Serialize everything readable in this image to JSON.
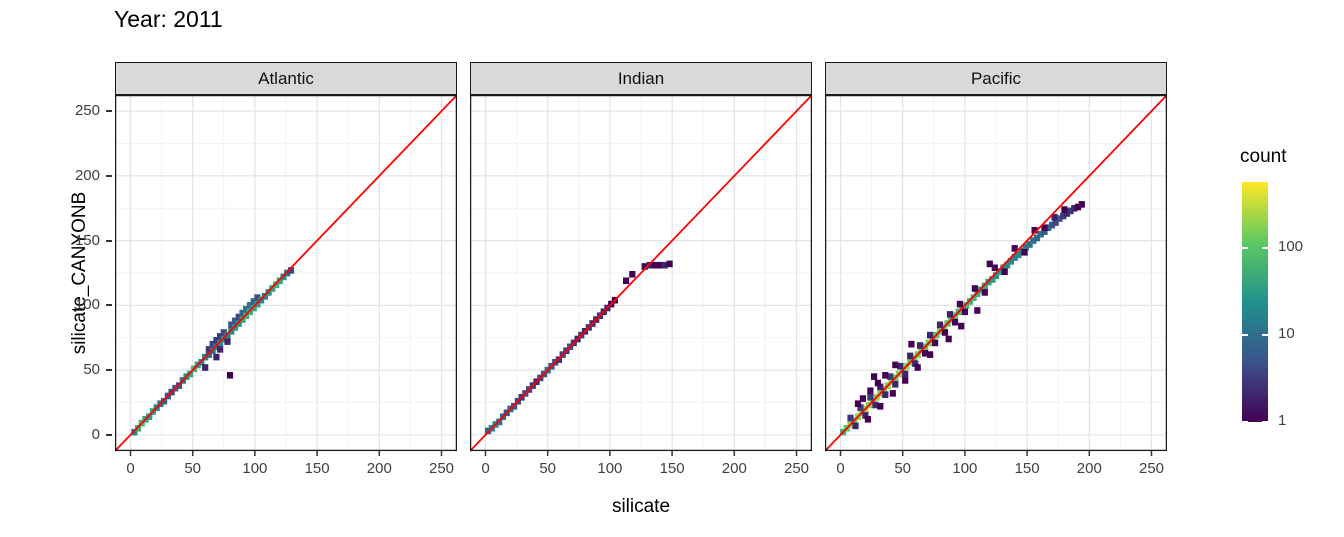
{
  "title": "Year: 2011",
  "axes": {
    "x_label": "silicate",
    "y_label": "silicate_CANYONB",
    "x_ticks": [
      0,
      50,
      100,
      150,
      200,
      250
    ],
    "y_ticks": [
      0,
      50,
      100,
      150,
      200,
      250
    ],
    "minor_ticks": [
      25,
      75,
      125,
      175,
      225
    ],
    "domain": [
      -12.5,
      262.5
    ]
  },
  "legend": {
    "title": "count",
    "ticks": [
      1,
      10,
      100
    ],
    "log10_max": 2.75
  },
  "colors": {
    "reference_line": "#FF0000",
    "strip_bg": "#D9D9D9",
    "panel_border": "#1A1A1A",
    "grid_major": "#E4E4E4",
    "grid_minor": "#F2F2F2",
    "tick_text": "#404040",
    "viridis": [
      "#440154",
      "#3B528B",
      "#21918C",
      "#5EC962",
      "#FDE725"
    ]
  },
  "chart_data": {
    "type": "heatmap",
    "subtype": "bin2d-scatter",
    "title": "Year: 2011",
    "xlabel": "silicate",
    "ylabel": "silicate_CANYONB",
    "xlim": [
      -12.5,
      262.5
    ],
    "ylim": [
      -12.5,
      262.5
    ],
    "bin_size": 5,
    "count_scale": "log10",
    "count_range": [
      1,
      560
    ],
    "reference_line": {
      "type": "identity",
      "color": "#FF0000"
    },
    "facets": [
      {
        "label": "Atlantic",
        "bins": [
          [
            3,
            2,
            15
          ],
          [
            6,
            5,
            50
          ],
          [
            9,
            9,
            70
          ],
          [
            12,
            12,
            40
          ],
          [
            15,
            14,
            30
          ],
          [
            18,
            18,
            35
          ],
          [
            21,
            21,
            20
          ],
          [
            24,
            24,
            12
          ],
          [
            27,
            26,
            8
          ],
          [
            30,
            30,
            6
          ],
          [
            33,
            33,
            4
          ],
          [
            36,
            36,
            7
          ],
          [
            39,
            38,
            5
          ],
          [
            42,
            42,
            10
          ],
          [
            45,
            45,
            25
          ],
          [
            48,
            47,
            45
          ],
          [
            51,
            51,
            60
          ],
          [
            54,
            54,
            35
          ],
          [
            57,
            56,
            20
          ],
          [
            60,
            60,
            15
          ],
          [
            60,
            52,
            2
          ],
          [
            63,
            62,
            10
          ],
          [
            63,
            66,
            3
          ],
          [
            66,
            65,
            12
          ],
          [
            66,
            70,
            4
          ],
          [
            69,
            68,
            15
          ],
          [
            69,
            60,
            2
          ],
          [
            69,
            73,
            3
          ],
          [
            72,
            71,
            20
          ],
          [
            72,
            66,
            2
          ],
          [
            72,
            76,
            3
          ],
          [
            75,
            74,
            25
          ],
          [
            75,
            79,
            4
          ],
          [
            78,
            77,
            18
          ],
          [
            78,
            72,
            2
          ],
          [
            80,
            46,
            1
          ],
          [
            81,
            80,
            22
          ],
          [
            81,
            85,
            5
          ],
          [
            84,
            83,
            30
          ],
          [
            84,
            88,
            6
          ],
          [
            87,
            86,
            25
          ],
          [
            87,
            91,
            4
          ],
          [
            90,
            89,
            40
          ],
          [
            90,
            94,
            8
          ],
          [
            93,
            92,
            55
          ],
          [
            93,
            97,
            10
          ],
          [
            96,
            95,
            60
          ],
          [
            96,
            100,
            12
          ],
          [
            99,
            98,
            45
          ],
          [
            99,
            103,
            8
          ],
          [
            102,
            101,
            30
          ],
          [
            102,
            106,
            5
          ],
          [
            105,
            104,
            20
          ],
          [
            108,
            107,
            15
          ],
          [
            111,
            110,
            25
          ],
          [
            114,
            113,
            40
          ],
          [
            117,
            116,
            55
          ],
          [
            120,
            119,
            45
          ],
          [
            123,
            122,
            25
          ],
          [
            126,
            125,
            10
          ],
          [
            129,
            127,
            4
          ]
        ]
      },
      {
        "label": "Indian",
        "bins": [
          [
            2,
            3,
            8
          ],
          [
            5,
            5,
            15
          ],
          [
            8,
            8,
            20
          ],
          [
            11,
            10,
            12
          ],
          [
            14,
            14,
            8
          ],
          [
            17,
            17,
            6
          ],
          [
            20,
            20,
            10
          ],
          [
            23,
            22,
            5
          ],
          [
            26,
            26,
            4
          ],
          [
            29,
            29,
            3
          ],
          [
            32,
            32,
            5
          ],
          [
            35,
            35,
            4
          ],
          [
            38,
            38,
            3
          ],
          [
            41,
            41,
            2
          ],
          [
            44,
            44,
            4
          ],
          [
            47,
            47,
            6
          ],
          [
            50,
            50,
            8
          ],
          [
            53,
            53,
            5
          ],
          [
            56,
            56,
            4
          ],
          [
            59,
            58,
            3
          ],
          [
            62,
            62,
            4
          ],
          [
            65,
            65,
            3
          ],
          [
            68,
            68,
            5
          ],
          [
            71,
            71,
            3
          ],
          [
            74,
            74,
            2
          ],
          [
            77,
            77,
            3
          ],
          [
            80,
            80,
            2
          ],
          [
            83,
            83,
            3
          ],
          [
            86,
            86,
            2
          ],
          [
            89,
            89,
            2
          ],
          [
            92,
            92,
            3
          ],
          [
            95,
            95,
            2
          ],
          [
            98,
            98,
            2
          ],
          [
            101,
            101,
            1
          ],
          [
            104,
            104,
            1
          ],
          [
            113,
            119,
            1
          ],
          [
            118,
            124,
            1
          ],
          [
            128,
            130,
            1
          ],
          [
            132,
            131,
            2
          ],
          [
            136,
            131,
            1
          ],
          [
            140,
            131,
            1
          ],
          [
            144,
            131,
            2
          ],
          [
            148,
            132,
            1
          ]
        ]
      },
      {
        "label": "Pacific",
        "bins": [
          [
            2,
            2,
            60
          ],
          [
            5,
            5,
            120
          ],
          [
            8,
            8,
            180
          ],
          [
            11,
            11,
            150
          ],
          [
            14,
            14,
            200
          ],
          [
            17,
            17,
            160
          ],
          [
            20,
            20,
            220
          ],
          [
            23,
            23,
            180
          ],
          [
            26,
            26,
            150
          ],
          [
            29,
            29,
            200
          ],
          [
            32,
            32,
            170
          ],
          [
            35,
            35,
            140
          ],
          [
            38,
            38,
            180
          ],
          [
            41,
            41,
            160
          ],
          [
            44,
            44,
            130
          ],
          [
            47,
            47,
            170
          ],
          [
            50,
            50,
            150
          ],
          [
            53,
            53,
            180
          ],
          [
            56,
            56,
            140
          ],
          [
            59,
            59,
            120
          ],
          [
            62,
            62,
            150
          ],
          [
            65,
            65,
            130
          ],
          [
            68,
            68,
            110
          ],
          [
            71,
            71,
            140
          ],
          [
            74,
            74,
            120
          ],
          [
            77,
            77,
            100
          ],
          [
            80,
            80,
            130
          ],
          [
            83,
            83,
            110
          ],
          [
            86,
            86,
            90
          ],
          [
            89,
            89,
            120
          ],
          [
            92,
            92,
            100
          ],
          [
            95,
            95,
            80
          ],
          [
            98,
            98,
            90
          ],
          [
            101,
            100,
            70
          ],
          [
            104,
            103,
            60
          ],
          [
            107,
            106,
            70
          ],
          [
            110,
            109,
            50
          ],
          [
            113,
            112,
            40
          ],
          [
            116,
            115,
            45
          ],
          [
            119,
            118,
            35
          ],
          [
            122,
            120,
            30
          ],
          [
            125,
            123,
            25
          ],
          [
            128,
            126,
            30
          ],
          [
            131,
            129,
            20
          ],
          [
            134,
            131,
            25
          ],
          [
            137,
            134,
            18
          ],
          [
            140,
            137,
            15
          ],
          [
            143,
            139,
            20
          ],
          [
            146,
            142,
            12
          ],
          [
            149,
            145,
            15
          ],
          [
            152,
            147,
            10
          ],
          [
            155,
            150,
            12
          ],
          [
            158,
            152,
            8
          ],
          [
            161,
            155,
            10
          ],
          [
            164,
            157,
            6
          ],
          [
            167,
            160,
            8
          ],
          [
            170,
            162,
            5
          ],
          [
            173,
            164,
            4
          ],
          [
            176,
            167,
            6
          ],
          [
            179,
            169,
            3
          ],
          [
            182,
            171,
            2
          ],
          [
            185,
            173,
            3
          ],
          [
            188,
            175,
            2
          ],
          [
            191,
            176,
            1
          ],
          [
            194,
            178,
            1
          ],
          [
            8,
            13,
            3
          ],
          [
            12,
            7,
            2
          ],
          [
            16,
            21,
            3
          ],
          [
            20,
            15,
            2
          ],
          [
            24,
            29,
            3
          ],
          [
            28,
            23,
            2
          ],
          [
            32,
            37,
            2
          ],
          [
            36,
            31,
            2
          ],
          [
            40,
            45,
            3
          ],
          [
            44,
            39,
            2
          ],
          [
            48,
            53,
            2
          ],
          [
            52,
            47,
            2
          ],
          [
            56,
            61,
            2
          ],
          [
            60,
            55,
            2
          ],
          [
            64,
            69,
            2
          ],
          [
            68,
            63,
            1
          ],
          [
            72,
            77,
            2
          ],
          [
            76,
            71,
            1
          ],
          [
            80,
            85,
            2
          ],
          [
            84,
            79,
            1
          ],
          [
            88,
            93,
            2
          ],
          [
            92,
            87,
            1
          ],
          [
            96,
            101,
            1
          ],
          [
            100,
            95,
            1
          ],
          [
            108,
            113,
            1
          ],
          [
            116,
            110,
            1
          ],
          [
            124,
            129,
            1
          ],
          [
            132,
            126,
            1
          ],
          [
            140,
            144,
            1
          ],
          [
            148,
            141,
            1
          ],
          [
            156,
            158,
            1
          ],
          [
            164,
            160,
            1
          ],
          [
            172,
            168,
            2
          ],
          [
            180,
            174,
            1
          ],
          [
            14,
            24,
            1
          ],
          [
            18,
            28,
            1
          ],
          [
            24,
            34,
            1
          ],
          [
            30,
            40,
            1
          ],
          [
            36,
            46,
            1
          ],
          [
            44,
            54,
            1
          ],
          [
            22,
            12,
            1
          ],
          [
            32,
            22,
            1
          ],
          [
            42,
            32,
            1
          ],
          [
            52,
            42,
            1
          ],
          [
            62,
            52,
            1
          ],
          [
            72,
            62,
            1
          ],
          [
            27,
            45,
            1
          ],
          [
            57,
            70,
            1
          ],
          [
            87,
            74,
            1
          ],
          [
            97,
            84,
            1
          ],
          [
            110,
            96,
            1
          ],
          [
            120,
            132,
            1
          ]
        ]
      }
    ]
  }
}
